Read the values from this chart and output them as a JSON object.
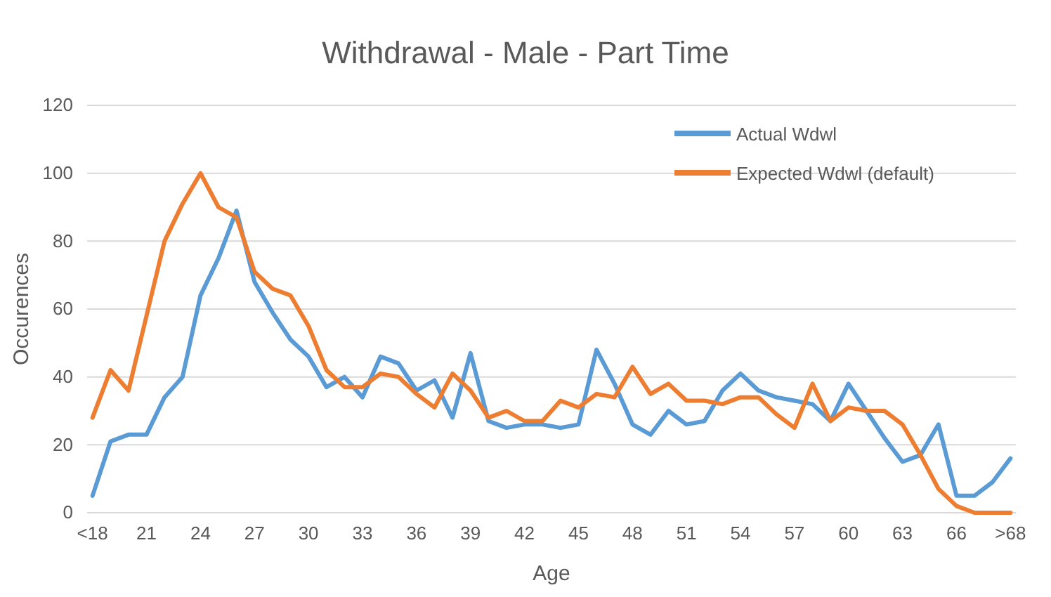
{
  "chart_data": {
    "type": "line",
    "title": "Withdrawal - Male - Part Time",
    "xlabel": "Age",
    "ylabel": "Occurences",
    "categories": [
      "<18",
      null,
      null,
      "21",
      null,
      null,
      "24",
      null,
      null,
      "27",
      null,
      null,
      "30",
      null,
      null,
      "33",
      null,
      null,
      "36",
      null,
      null,
      "39",
      null,
      null,
      "42",
      null,
      null,
      "45",
      null,
      null,
      "48",
      null,
      null,
      "51",
      null,
      null,
      "54",
      null,
      null,
      "57",
      null,
      null,
      "60",
      null,
      null,
      "63",
      null,
      null,
      "66",
      null,
      null,
      ">68"
    ],
    "series": [
      {
        "name": "Actual Wdwl",
        "color": "#5b9bd5",
        "values": [
          5,
          21,
          23,
          23,
          34,
          40,
          64,
          75,
          89,
          68,
          59,
          51,
          46,
          37,
          40,
          34,
          46,
          44,
          36,
          39,
          28,
          47,
          27,
          25,
          26,
          26,
          25,
          26,
          48,
          38,
          26,
          23,
          30,
          26,
          27,
          36,
          41,
          36,
          34,
          33,
          32,
          27,
          38,
          30,
          22,
          15,
          17,
          26,
          5,
          5,
          9,
          16
        ]
      },
      {
        "name": "Expected Wdwl (default)",
        "color": "#ed7d31",
        "values": [
          28,
          42,
          36,
          58,
          80,
          91,
          100,
          90,
          87,
          71,
          66,
          64,
          55,
          42,
          37,
          37,
          41,
          40,
          35,
          31,
          41,
          36,
          28,
          30,
          27,
          27,
          33,
          31,
          35,
          34,
          43,
          35,
          38,
          33,
          33,
          32,
          34,
          34,
          29,
          25,
          38,
          27,
          31,
          30,
          30,
          26,
          17,
          7,
          2,
          0,
          0,
          0
        ]
      }
    ],
    "ylim": [
      0,
      120
    ],
    "yticks": [
      0,
      20,
      40,
      60,
      80,
      100,
      120
    ],
    "grid": "y",
    "legend": "top right"
  }
}
